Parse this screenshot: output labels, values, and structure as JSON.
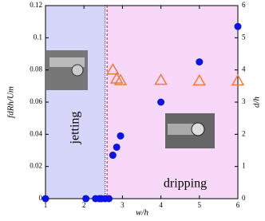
{
  "chart_data": {
    "type": "scatter",
    "xlabel": "w/h",
    "ylabel": "fdRh/Um",
    "y2label": "d/h",
    "xlim": [
      1,
      6
    ],
    "xticks": [
      1,
      2,
      3,
      4,
      5,
      6
    ],
    "ylim": [
      0,
      0.12
    ],
    "yticks": [
      0,
      0.02,
      0.04,
      0.06,
      0.08,
      0.1,
      0.12
    ],
    "y2lim": [
      0,
      6
    ],
    "y2ticks": [
      0,
      1,
      2,
      3,
      4,
      5,
      6
    ],
    "regions": [
      {
        "label": "jetting",
        "x": [
          1,
          2.55
        ],
        "color": "#d6d6fa"
      },
      {
        "label": "dripping",
        "x": [
          2.6,
          6
        ],
        "color": "#f8d8f8"
      }
    ],
    "vlines": [
      {
        "x": 2.55,
        "color": "#1a1aff"
      },
      {
        "x": 2.6,
        "color": "#e03030"
      }
    ],
    "series": [
      {
        "color": "#0a14e6",
        "marker": "circle",
        "x": [
          1,
          2.05,
          2.3,
          2.4,
          2.45,
          2.55,
          2.65,
          2.75,
          2.85,
          2.95,
          4,
          5,
          6
        ],
        "values": [
          0,
          0,
          0,
          0,
          0,
          0,
          0,
          0.027,
          0.032,
          0.039,
          0.06,
          0.085,
          0.107
        ]
      },
      {
        "color": "#f07a3a",
        "marker": "triangle",
        "axis": "y2",
        "x": [
          2.75,
          2.85,
          2.95,
          4,
          5,
          6
        ],
        "values": [
          4.0,
          3.72,
          3.67,
          3.68,
          3.66,
          3.66
        ]
      }
    ]
  }
}
